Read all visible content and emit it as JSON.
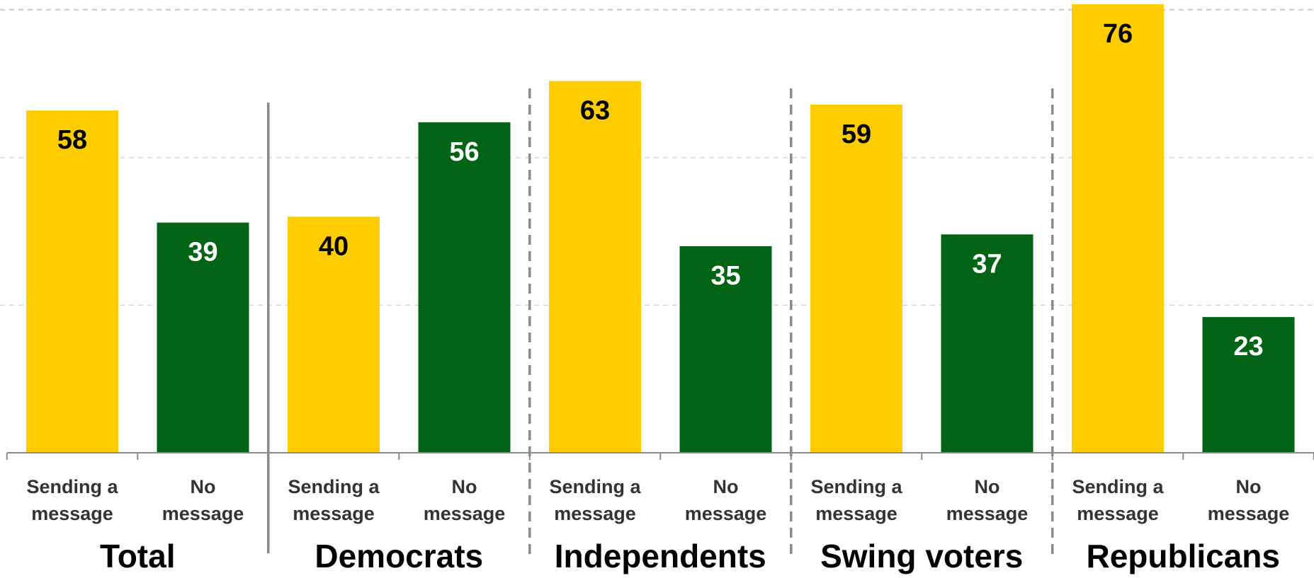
{
  "chart_data": {
    "type": "bar",
    "groups": [
      {
        "label": "Total",
        "categories": [
          {
            "line1": "Sending a",
            "line2": "message",
            "series": "Sending a message",
            "value": 58
          },
          {
            "line1": "No",
            "line2": "message",
            "series": "No message",
            "value": 39
          }
        ]
      },
      {
        "label": "Democrats",
        "categories": [
          {
            "line1": "Sending a",
            "line2": "message",
            "series": "Sending a message",
            "value": 40
          },
          {
            "line1": "No",
            "line2": "message",
            "series": "No message",
            "value": 56
          }
        ]
      },
      {
        "label": "Independents",
        "categories": [
          {
            "line1": "Sending a",
            "line2": "message",
            "series": "Sending a message",
            "value": 63
          },
          {
            "line1": "No",
            "line2": "message",
            "series": "No message",
            "value": 35
          }
        ]
      },
      {
        "label": "Swing voters",
        "categories": [
          {
            "line1": "Sending a",
            "line2": "message",
            "series": "Sending a message",
            "value": 59
          },
          {
            "line1": "No",
            "line2": "message",
            "series": "No message",
            "value": 37
          }
        ]
      },
      {
        "label": "Republicans",
        "categories": [
          {
            "line1": "Sending a",
            "line2": "message",
            "series": "Sending a message",
            "value": 76
          },
          {
            "line1": "No",
            "line2": "message",
            "series": "No message",
            "value": 23
          }
        ]
      }
    ],
    "series_colors": {
      "Sending a message": "#FFCC00",
      "No message": "#006414"
    },
    "label_colors": {
      "Sending a message": "#000000",
      "No message": "#ffffff"
    },
    "ylim": [
      0,
      76
    ],
    "gridlines": [
      25,
      50,
      75
    ],
    "grid": true,
    "title": "",
    "xlabel": "",
    "ylabel": ""
  }
}
